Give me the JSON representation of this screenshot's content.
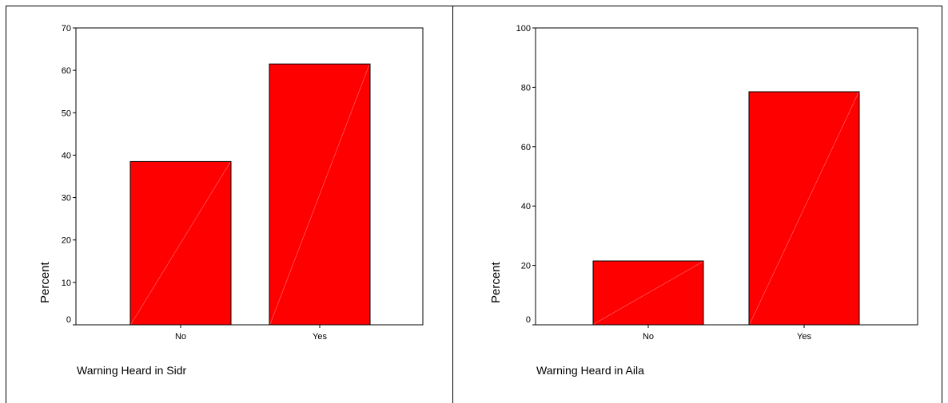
{
  "colors": {
    "bar_fill": "#ff0000",
    "bar_stroke": "#000000",
    "diag": "#ff7070"
  },
  "chart_data": [
    {
      "type": "bar",
      "categories": [
        "No",
        "Yes"
      ],
      "values": [
        38.5,
        61.5
      ],
      "ylabel": "Percent",
      "xlabel": "Warning Heard in Sidr",
      "ylim": [
        0,
        70
      ],
      "yticks": [
        "0",
        "10",
        "20",
        "30",
        "40",
        "50",
        "60",
        "70"
      ],
      "grid": false
    },
    {
      "type": "bar",
      "categories": [
        "No",
        "Yes"
      ],
      "values": [
        21.5,
        78.5
      ],
      "ylabel": "Percent",
      "xlabel": "Warning Heard in Aila",
      "ylim": [
        0,
        100
      ],
      "yticks": [
        "0",
        "20",
        "40",
        "60",
        "80",
        "100"
      ],
      "grid": false
    }
  ]
}
